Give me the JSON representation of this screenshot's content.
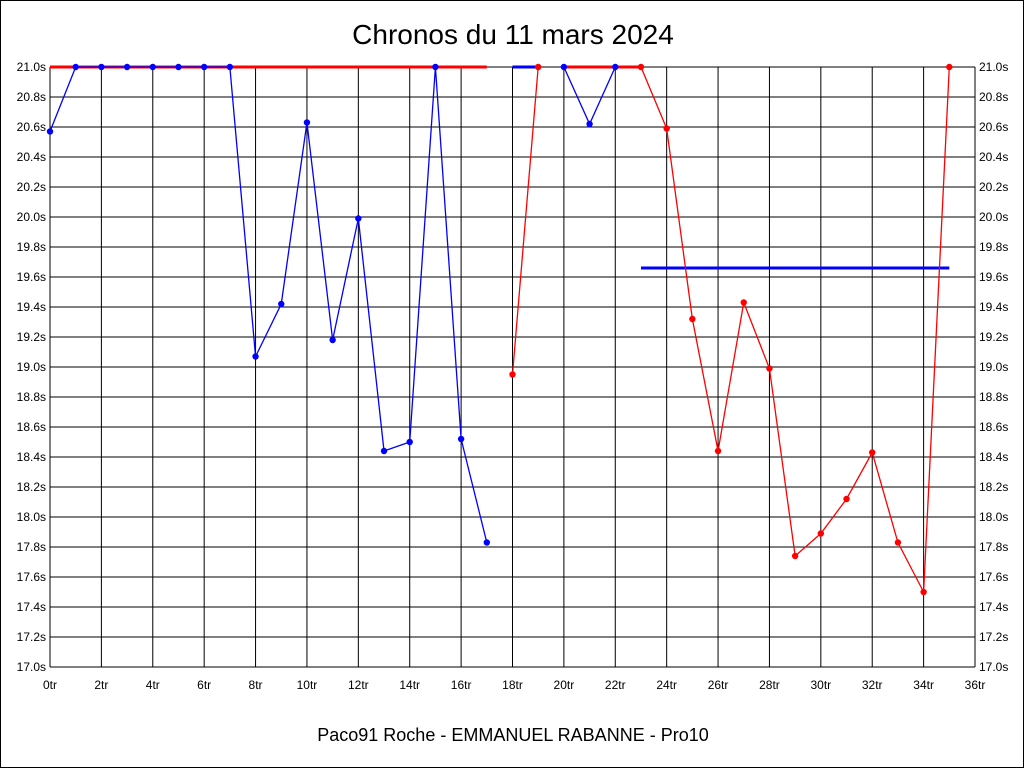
{
  "chart_data": {
    "type": "line",
    "title": "Chronos du 11 mars 2024",
    "footer": "Paco91 Roche - EMMANUEL RABANNE - Pro10",
    "xlim": [
      0,
      36
    ],
    "ylim": [
      17.0,
      21.0
    ],
    "grid": true,
    "x_ticks": [
      "0tr",
      "2tr",
      "4tr",
      "6tr",
      "8tr",
      "10tr",
      "12tr",
      "14tr",
      "16tr",
      "18tr",
      "20tr",
      "22tr",
      "24tr",
      "26tr",
      "28tr",
      "30tr",
      "32tr",
      "34tr",
      "36tr"
    ],
    "y_ticks": [
      "17.0s",
      "17.2s",
      "17.4s",
      "17.6s",
      "17.8s",
      "18.0s",
      "18.2s",
      "18.4s",
      "18.6s",
      "18.8s",
      "19.0s",
      "19.2s",
      "19.4s",
      "19.6s",
      "19.8s",
      "20.0s",
      "20.2s",
      "20.4s",
      "20.6s",
      "20.8s",
      "21.0s"
    ],
    "series": [
      {
        "color": "#0000ff",
        "points": [
          [
            0,
            20.57
          ],
          [
            1,
            21.0
          ],
          [
            2,
            21.0
          ],
          [
            3,
            21.0
          ],
          [
            4,
            21.0
          ],
          [
            5,
            21.0
          ],
          [
            6,
            21.0
          ],
          [
            7,
            21.0
          ],
          [
            8,
            19.07
          ],
          [
            9,
            19.42
          ],
          [
            10,
            20.63
          ],
          [
            11,
            19.18
          ],
          [
            12,
            19.99
          ],
          [
            13,
            18.44
          ],
          [
            14,
            18.5
          ],
          [
            15,
            21.0
          ],
          [
            16,
            18.52
          ],
          [
            17,
            17.83
          ]
        ]
      },
      {
        "color": "#0000ff",
        "points": [
          [
            20,
            21.0
          ],
          [
            21,
            20.62
          ],
          [
            22,
            21.0
          ]
        ]
      },
      {
        "color": "#ff0000",
        "points": [
          [
            18,
            18.95
          ],
          [
            19,
            21.0
          ]
        ]
      },
      {
        "color": "#ff0000",
        "points": [
          [
            23,
            21.0
          ],
          [
            24,
            20.59
          ],
          [
            25,
            19.32
          ],
          [
            26,
            18.44
          ],
          [
            27,
            19.43
          ],
          [
            28,
            18.99
          ],
          [
            29,
            17.74
          ],
          [
            30,
            17.89
          ],
          [
            31,
            18.12
          ],
          [
            32,
            18.43
          ],
          [
            33,
            17.83
          ],
          [
            34,
            17.5
          ],
          [
            35,
            21.0
          ]
        ]
      }
    ],
    "reference_lines": [
      {
        "color": "#ff0000",
        "y": 21.0,
        "x_from": 0,
        "x_to": 17.0
      },
      {
        "color": "#0000ff",
        "y": 21.0,
        "x_from": 18,
        "x_to": 19
      },
      {
        "color": "#ff0000",
        "y": 21.0,
        "x_from": 20,
        "x_to": 23
      },
      {
        "color": "#0000ff",
        "y": 19.66,
        "x_from": 23,
        "x_to": 35
      }
    ]
  }
}
